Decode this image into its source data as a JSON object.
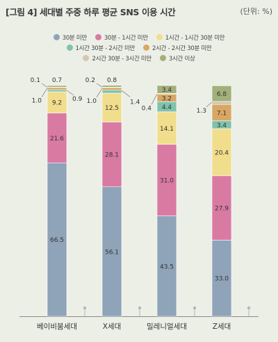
{
  "header": {
    "title": "[그림 4]  세대별 주중 하루 평균 SNS 이용 시간",
    "unit": "(단위: %)"
  },
  "chart_data": {
    "type": "bar",
    "stacked": true,
    "orientation": "vertical",
    "categories": [
      "베이비붐세대",
      "X세대",
      "밀레니얼세대",
      "Z세대"
    ],
    "series": [
      {
        "name": "30분 미만",
        "color": "#8fa3b9",
        "values": [
          66.5,
          56.1,
          43.5,
          33.0
        ]
      },
      {
        "name": "30분 - 1시간 미만",
        "color": "#d97aa3",
        "values": [
          21.6,
          28.1,
          31.0,
          27.9
        ]
      },
      {
        "name": "1시간 - 1시간 30분 미만",
        "color": "#f1de8c",
        "values": [
          9.2,
          12.5,
          14.1,
          20.4
        ]
      },
      {
        "name": "1시간 30분 - 2시간 미만",
        "color": "#7fc3ad",
        "values": [
          0.9,
          1.4,
          4.4,
          3.4
        ]
      },
      {
        "name": "2시간 - 2시간 30분 미만",
        "color": "#d9a764",
        "values": [
          1.0,
          1.0,
          3.2,
          7.1
        ]
      },
      {
        "name": "2시간 30분 - 3시간 미만",
        "color": "#d3c6b4",
        "values": [
          0.1,
          0.2,
          0.4,
          1.3
        ]
      },
      {
        "name": "3시간 이상",
        "color": "#a2b07a",
        "values": [
          0.7,
          0.8,
          3.4,
          6.8
        ]
      }
    ],
    "value_labels": [
      [
        "66.5",
        "21.6",
        "9.2",
        "0.9",
        "1.0",
        "0.1",
        "0.7"
      ],
      [
        "56.1",
        "28.1",
        "12.5",
        "1.4",
        "1.0",
        "0.2",
        "0.8"
      ],
      [
        "43.5",
        "31.0",
        "14.1",
        "4.4",
        "3.2",
        "0.4",
        "3.4"
      ],
      [
        "33.0",
        "27.9",
        "20.4",
        "3.4",
        "7.1",
        "1.3",
        "6.8"
      ]
    ],
    "ylim": [
      0,
      100
    ],
    "legend_position": "top",
    "grid": false
  }
}
